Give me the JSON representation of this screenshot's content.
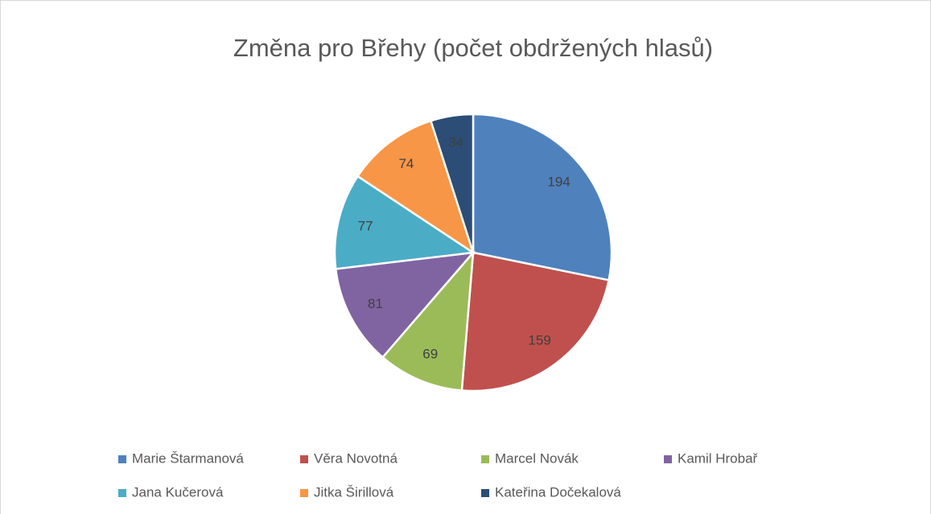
{
  "chart_data": {
    "type": "pie",
    "title": "Změna pro Břehy (počet obdržených hlasů)",
    "categories": [
      "Marie Štarmanová",
      "Věra Novotná",
      "Marcel Novák",
      "Kamil Hrobař",
      "Jana Kučerová",
      "Jitka Širillová",
      "Kateřina Dočekalová"
    ],
    "values": [
      194,
      159,
      69,
      81,
      77,
      74,
      34
    ],
    "colors": [
      "#4f81bd",
      "#c0504d",
      "#9bbb59",
      "#8064a2",
      "#4bacc6",
      "#f79646",
      "#2c4d75"
    ],
    "legend": "bottom"
  }
}
